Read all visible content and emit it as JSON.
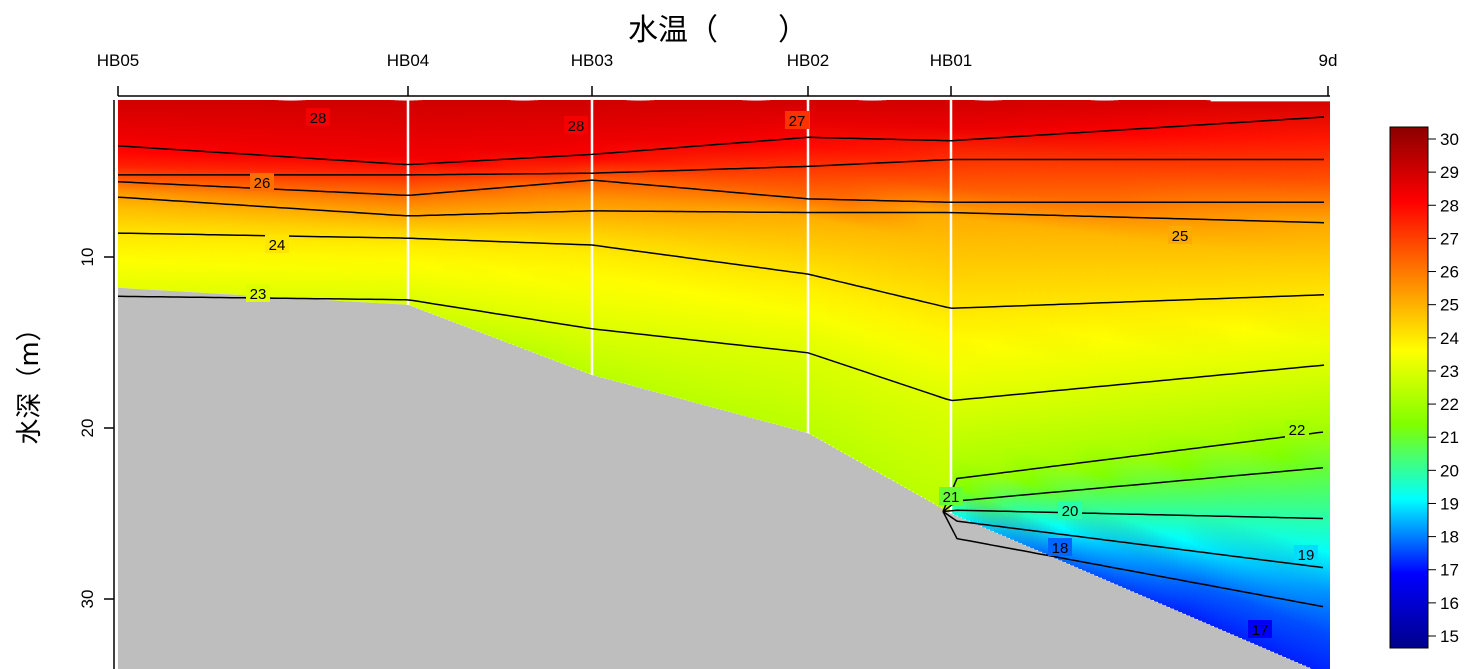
{
  "chart_data": {
    "type": "heatmap",
    "subtype": "depth-section contour",
    "title": "水温（　　）",
    "ylabel": "水深（m）",
    "xlabel": "",
    "stations": [
      "HB05",
      "HB04",
      "HB03",
      "HB02",
      "HB01",
      "9d"
    ],
    "ylim": [
      0,
      35
    ],
    "y_reversed": true,
    "y_ticks": [
      10,
      20,
      30
    ],
    "grid": false,
    "colorbar": {
      "min": 15,
      "max": 30,
      "ticks": [
        15,
        16,
        17,
        18,
        19,
        20,
        21,
        22,
        23,
        24,
        25,
        26,
        27,
        28,
        29,
        30
      ],
      "colors": [
        "#00008b",
        "#0000ff",
        "#00ffff",
        "#7fff00",
        "#ffff00",
        "#ff8000",
        "#ff0000",
        "#8b0000"
      ],
      "placement": "right"
    },
    "bottom_depth_m": [
      11.8,
      12.8,
      16.9,
      20.3,
      25.0,
      34.5
    ],
    "isotherm_depth_m": {
      "28": [
        3.5,
        4.6,
        4.0,
        3.0,
        3.2,
        1.8
      ],
      "27": [
        5.2,
        5.2,
        5.1,
        4.7,
        4.3,
        4.3
      ],
      "26": [
        5.6,
        6.4,
        5.5,
        6.6,
        6.8,
        6.8
      ],
      "25": [
        6.5,
        7.6,
        7.3,
        7.4,
        7.4,
        8.0
      ],
      "24": [
        8.6,
        8.9,
        9.3,
        11.0,
        13.0,
        12.2
      ],
      "23": [
        12.3,
        12.5,
        14.2,
        15.6,
        18.4,
        16.3
      ],
      "22": [
        null,
        null,
        null,
        null,
        23.0,
        20.2
      ],
      "21": [
        null,
        null,
        null,
        null,
        24.3,
        22.3
      ],
      "20": [
        null,
        null,
        null,
        null,
        24.8,
        25.3
      ],
      "19": [
        null,
        null,
        null,
        null,
        25.4,
        28.2
      ],
      "18": [
        null,
        null,
        null,
        null,
        26.4,
        30.5
      ],
      "17": [
        null,
        null,
        null,
        null,
        null,
        33.6
      ]
    },
    "contour_labels": [
      "28",
      "28",
      "27",
      "26",
      "25",
      "24",
      "23",
      "22",
      "21",
      "20",
      "19",
      "18",
      "17"
    ]
  }
}
